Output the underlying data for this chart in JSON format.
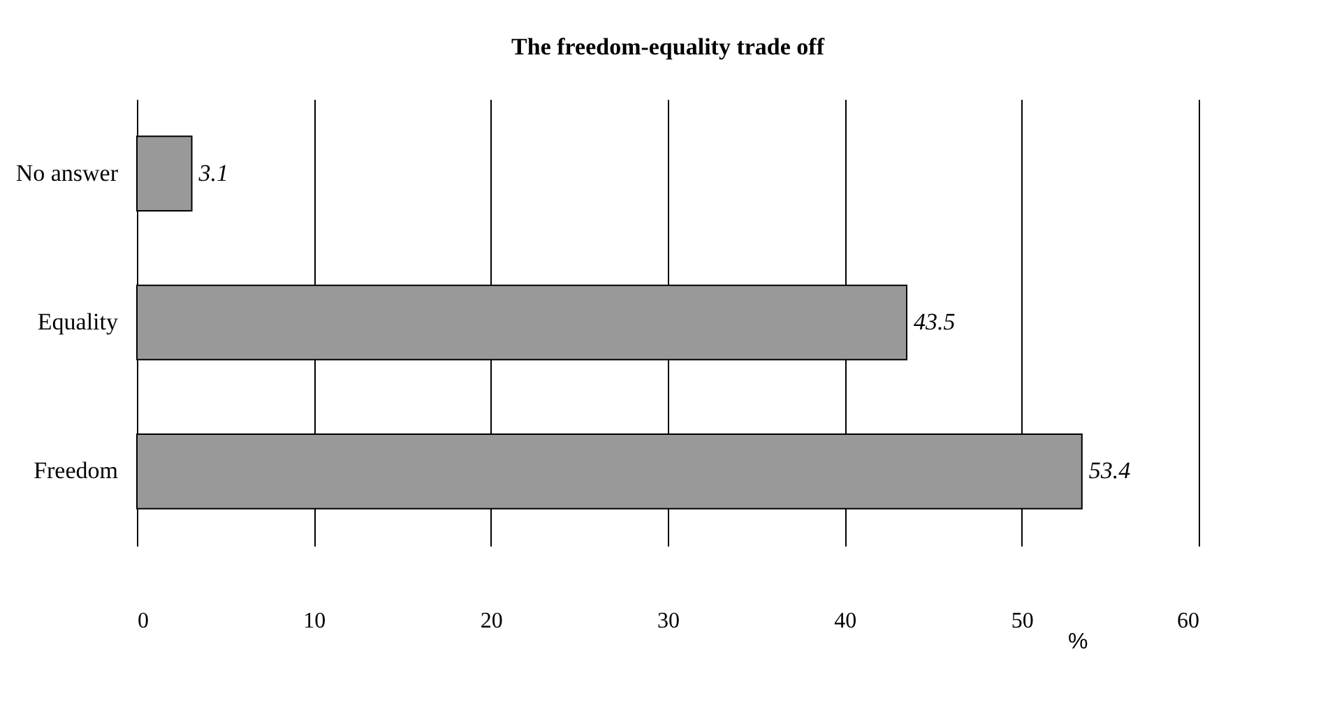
{
  "chart_data": {
    "type": "bar",
    "orientation": "horizontal",
    "title": "The freedom-equality trade off",
    "categories": [
      "No answer",
      "Equality",
      "Freedom"
    ],
    "values": [
      3.1,
      43.5,
      53.4
    ],
    "color": "#999999",
    "xlim": [
      0,
      60
    ],
    "xticks": [
      0,
      10,
      20,
      30,
      40,
      50,
      60
    ],
    "xlabel": "%",
    "grid": "x",
    "data_labels": true
  }
}
